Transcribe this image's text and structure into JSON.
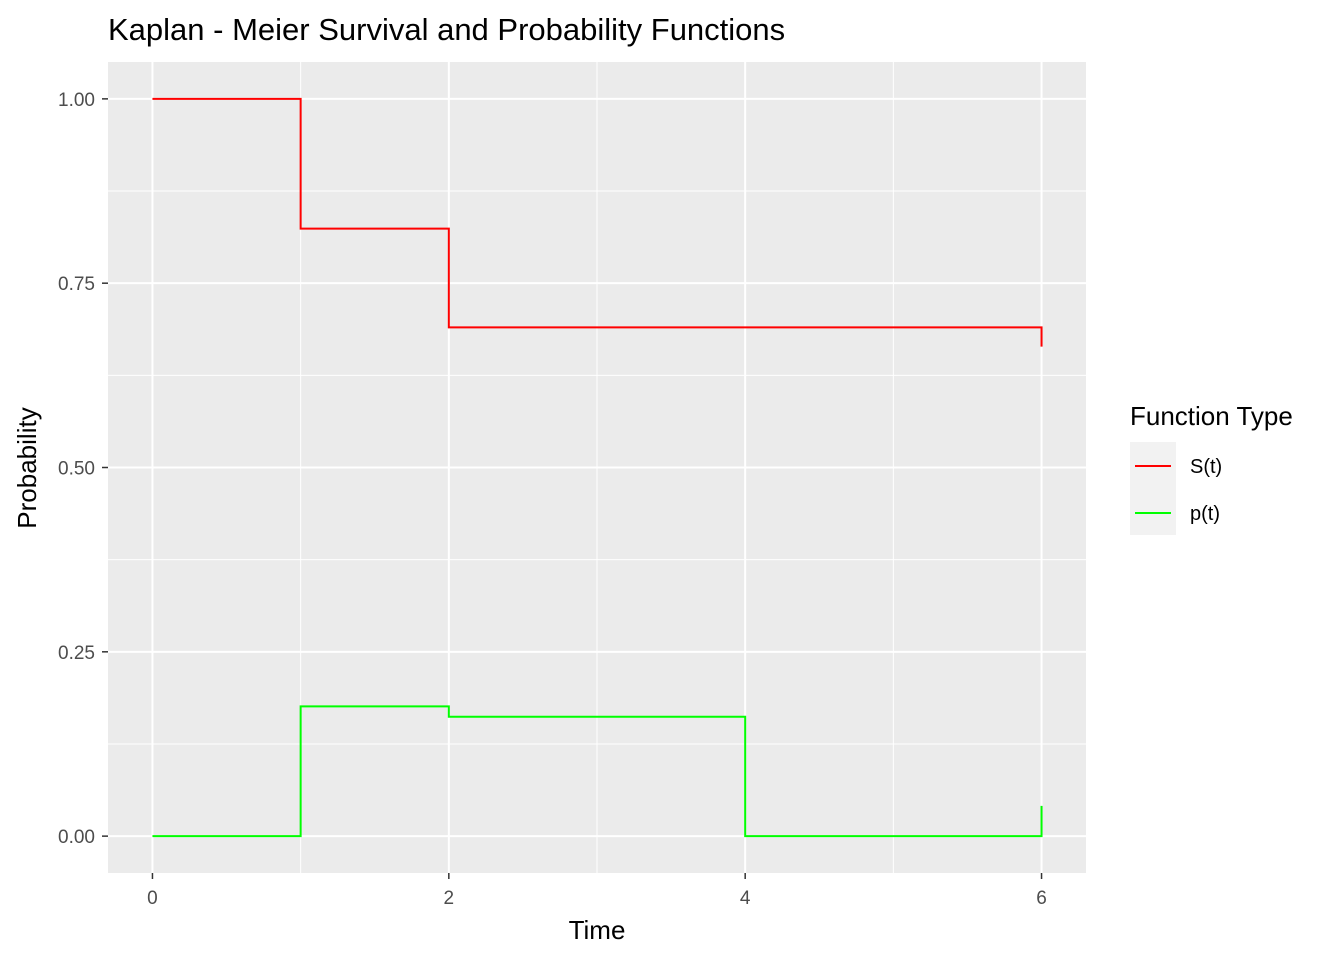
{
  "chart_data": {
    "type": "line",
    "step": true,
    "title": "Kaplan - Meier Survival and Probability Functions",
    "xlabel": "Time",
    "ylabel": "Probability",
    "xlim": [
      -0.3,
      6.3
    ],
    "ylim": [
      -0.05,
      1.05
    ],
    "x_ticks": [
      0,
      2,
      4,
      6
    ],
    "x_tick_labels": [
      "0",
      "2",
      "4",
      "6"
    ],
    "y_ticks": [
      0,
      0.25,
      0.5,
      0.75,
      1.0
    ],
    "y_tick_labels": [
      "0.00",
      "0.25",
      "0.50",
      "0.75",
      "1.00"
    ],
    "grid": true,
    "legend": {
      "title": "Function Type",
      "position": "right",
      "entries": [
        "S(t)",
        "p(t)"
      ]
    },
    "series": [
      {
        "name": "S(t)",
        "color": "#ff0000",
        "x": [
          0,
          1,
          2,
          6,
          6
        ],
        "y": [
          1.0,
          0.824,
          0.69,
          0.69,
          0.664
        ]
      },
      {
        "name": "p(t)",
        "color": "#00ff00",
        "x": [
          0,
          1,
          2,
          4,
          6,
          6
        ],
        "y": [
          0.0,
          0.176,
          0.162,
          0.0,
          0.0,
          0.041
        ]
      }
    ]
  }
}
